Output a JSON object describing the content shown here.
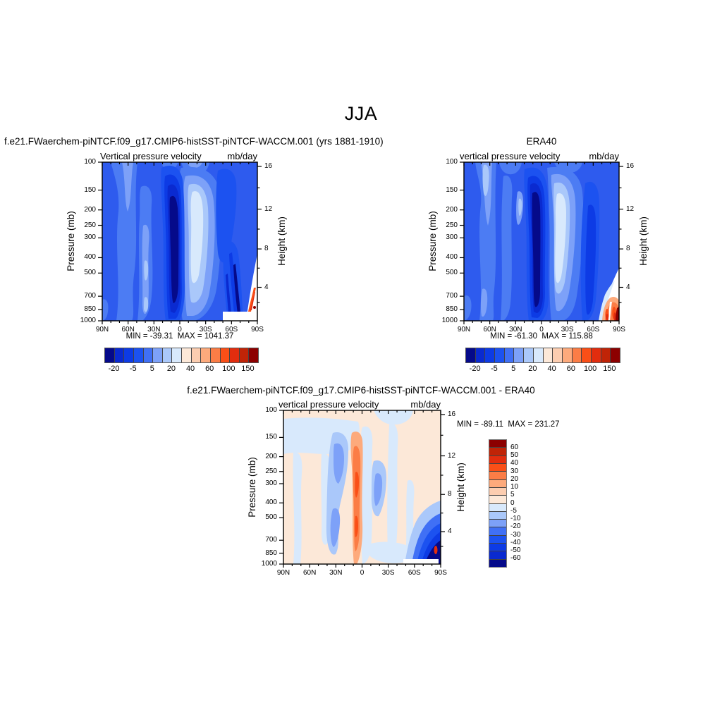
{
  "page": {
    "title": "JJA"
  },
  "axes": {
    "pressure_label": "Pressure (mb)",
    "height_label": "Height (km)",
    "pressure_ticks": [
      "100",
      "150",
      "200",
      "250",
      "300",
      "400",
      "500",
      "700",
      "850",
      "1000"
    ],
    "height_ticks": [
      "16",
      "12",
      "8",
      "4"
    ],
    "lat_ticks": [
      "90N",
      "60N",
      "30N",
      "0",
      "30S",
      "60S",
      "90S"
    ]
  },
  "colorbar": {
    "colors_blue_to_red": [
      "#050a8a",
      "#0a2ad0",
      "#0d3be5",
      "#1c52f0",
      "#4070f5",
      "#7da1f8",
      "#aac8fa",
      "#d8e9fc",
      "#fce8d8",
      "#fccdb0",
      "#fdaa7c",
      "#fb7d46",
      "#fa4f17",
      "#e22d0e",
      "#c02407",
      "#8c0000"
    ],
    "horizontal_labels": [
      "-20",
      "-5",
      "5",
      "20",
      "40",
      "60",
      "100",
      "150"
    ],
    "vertical_labels": [
      "60",
      "50",
      "40",
      "30",
      "20",
      "10",
      "5",
      "0",
      "-5",
      "-10",
      "-20",
      "-30",
      "-40",
      "-50",
      "-60"
    ]
  },
  "panels": {
    "model": {
      "title": "f.e21.FWaerchem-piNTCF.f09_g17.CMIP6-histSST-piNTCF-WACCM.001 (yrs 1881-1910)",
      "subtitle": "Vertical pressure velocity",
      "units": "mb/day",
      "stats": "MIN = -39.31  MAX = 1041.37"
    },
    "era": {
      "title": "ERA40",
      "subtitle": "vertical pressure velocity",
      "units": "mb/day",
      "stats": "MIN = -61.30  MAX = 115.88"
    },
    "diff": {
      "title": "f.e21.FWaerchem-piNTCF.f09_g17.CMIP6-histSST-piNTCF-WACCM.001 - ERA40",
      "subtitle": "vertical pressure velocity",
      "units": "mb/day",
      "stats": "MIN = -89.11  MAX = 231.27"
    }
  },
  "chart_data": [
    {
      "type": "heatmap",
      "panel": "model",
      "title": "f.e21.FWaerchem-piNTCF.f09_g17.CMIP6-histSST-piNTCF-WACCM.001 (yrs 1881-1910)",
      "field": "Vertical pressure velocity",
      "units": "mb/day",
      "season": "JJA",
      "min": -39.31,
      "max": 1041.37,
      "x_axis": {
        "label": "latitude",
        "ticks": [
          "90N",
          "60N",
          "30N",
          "0",
          "30S",
          "60S",
          "90S"
        ]
      },
      "y_axis_left": {
        "label": "Pressure (mb)",
        "scale": "log",
        "ticks": [
          100,
          150,
          200,
          250,
          300,
          400,
          500,
          700,
          850,
          1000
        ]
      },
      "y_axis_right": {
        "label": "Height (km)",
        "ticks": [
          16,
          12,
          8,
          4
        ]
      },
      "colorbar_labeled_levels": [
        -20,
        -5,
        5,
        20,
        40,
        60,
        100,
        150
      ],
      "features": [
        "dark-blue ascent column near 5-12N spanning 150-1000 mb",
        "light band of weak values 0-30S centered near 400 mb",
        "lighter bands near 60N and 35N",
        "white masked terrain region 60-90S below ~850 mb with thin orange-red descent streak near 85S"
      ]
    },
    {
      "type": "heatmap",
      "panel": "era",
      "title": "ERA40",
      "field": "vertical pressure velocity",
      "units": "mb/day",
      "season": "JJA",
      "min": -61.3,
      "max": 115.88,
      "x_axis": {
        "label": "latitude",
        "ticks": [
          "90N",
          "60N",
          "30N",
          "0",
          "30S",
          "60S",
          "90S"
        ]
      },
      "y_axis_left": {
        "label": "Pressure (mb)",
        "scale": "log",
        "ticks": [
          100,
          150,
          200,
          250,
          300,
          400,
          500,
          700,
          850,
          1000
        ]
      },
      "y_axis_right": {
        "label": "Height (km)",
        "ticks": [
          16,
          12,
          8,
          4
        ]
      },
      "colorbar_labeled_levels": [
        -20,
        -5,
        5,
        20,
        40,
        60,
        100,
        150
      ],
      "features": [
        "dark-blue ascent column near 0-10N spanning 150-1000 mb",
        "pale descent region 5-25S centered ~300 mb",
        "dark band near 55-65S",
        "white masked wedge 65-90S below ~500 mb containing orange-red descent maximum near 75-88S"
      ]
    },
    {
      "type": "heatmap",
      "panel": "diff",
      "title": "f.e21.FWaerchem-piNTCF.f09_g17.CMIP6-histSST-piNTCF-WACCM.001 - ERA40",
      "field": "vertical pressure velocity difference",
      "units": "mb/day",
      "season": "JJA",
      "min": -89.11,
      "max": 231.27,
      "x_axis": {
        "label": "latitude",
        "ticks": [
          "90N",
          "60N",
          "30N",
          "0",
          "30S",
          "60S",
          "90S"
        ]
      },
      "y_axis_left": {
        "label": "Pressure (mb)",
        "scale": "log",
        "ticks": [
          100,
          150,
          200,
          250,
          300,
          400,
          500,
          700,
          850,
          1000
        ]
      },
      "y_axis_right": {
        "label": "Height (km)",
        "ticks": [
          16,
          12,
          8,
          4
        ]
      },
      "colorbar_labeled_levels": [
        60,
        50,
        40,
        30,
        20,
        10,
        5,
        0,
        -5,
        -10,
        -20,
        -30,
        -40,
        -50,
        -60
      ],
      "features": [
        "orange positive anomaly column near 5-8N from 150 mb to surface",
        "blue negative anomalies near 15-30N (200-900 mb) and 8-18S (300-700 mb)",
        "pale-blue swath across high northern latitudes 100-300 mb",
        "strong dark-navy negative anomaly 68-85S below ~600 mb with small red spot near 83S/850 mb",
        "white masked strip 63-90S below ~870 mb"
      ]
    }
  ]
}
